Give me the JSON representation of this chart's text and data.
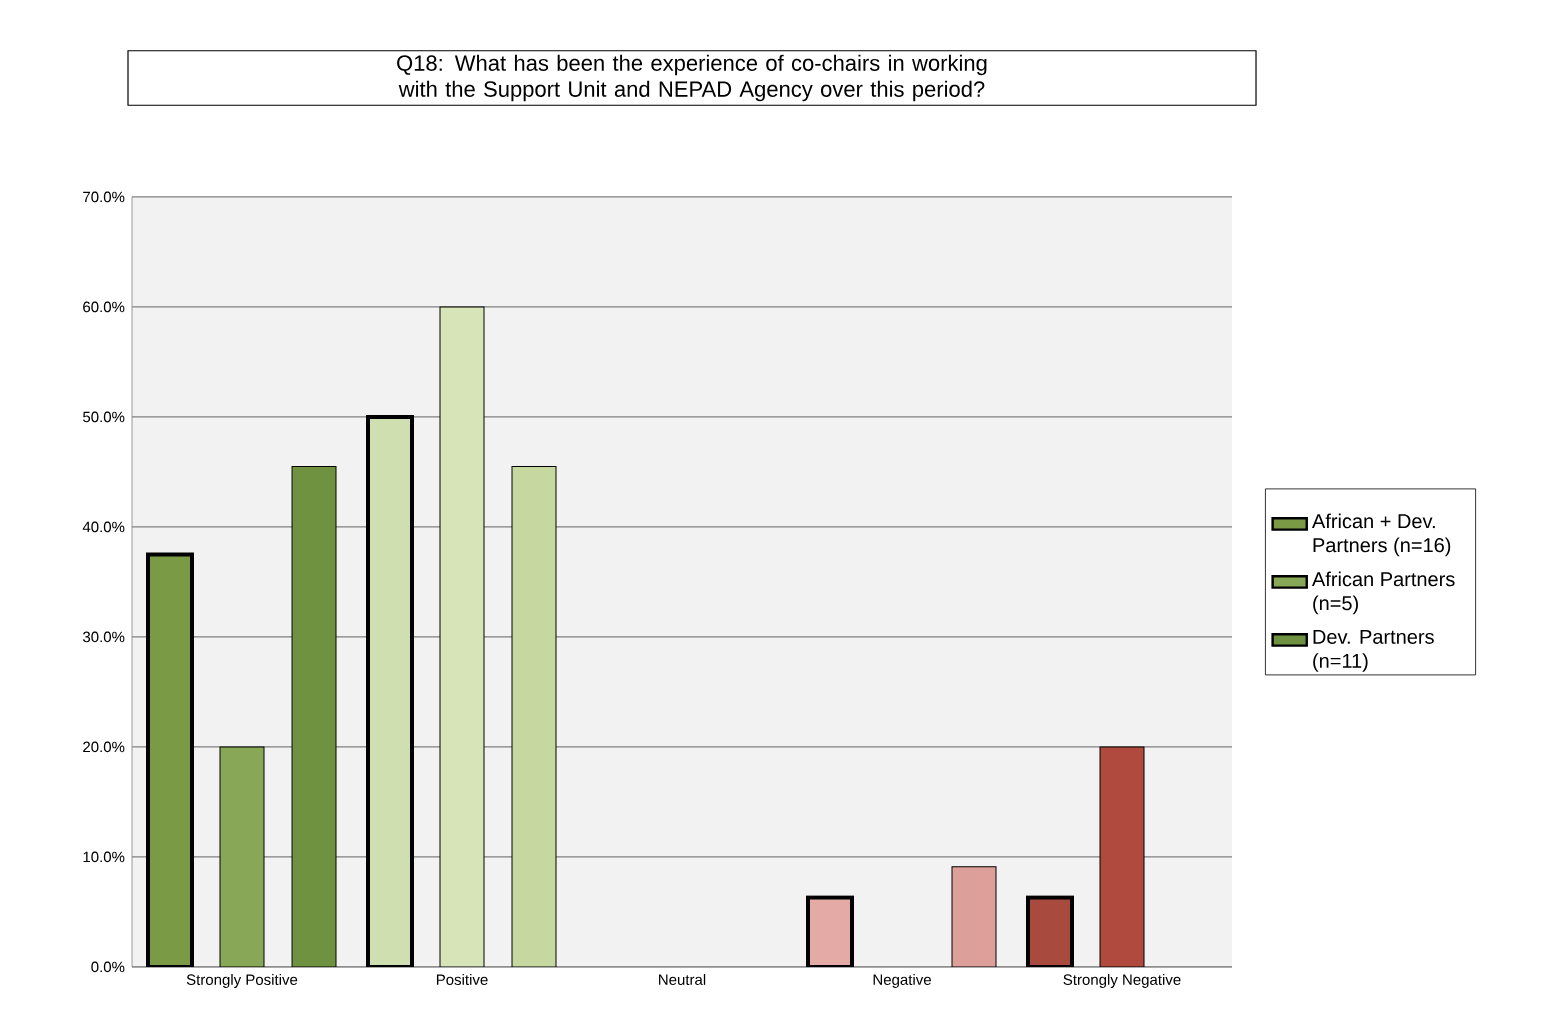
{
  "chart_data": {
    "type": "bar",
    "title": "Q18: What has been the experience of co-chairs in working with the Support Unit and NEPAD Agency over this period?",
    "categories": [
      "Strongly Positive",
      "Positive",
      "Neutral",
      "Negative",
      "Strongly Negative"
    ],
    "series": [
      {
        "name": "African + Dev. Partners (n=16)",
        "color": "#7a9a45",
        "colors": [
          "#7a9a45",
          "#d0dfb0",
          "#d0dfb0",
          "#e3aaa6",
          "#a84a3e"
        ],
        "values": [
          37.5,
          50,
          0,
          6.3,
          6.3
        ]
      },
      {
        "name": "African Partners (n=5)",
        "color": "#89a857",
        "colors": [
          "#89a857",
          "#d6e4b8",
          "#d6e4b8",
          "#dc9f9a",
          "#b04a3e"
        ],
        "values": [
          20,
          60,
          0,
          0,
          20
        ]
      },
      {
        "name": "Dev. Partners (n=11)",
        "color": "#6f9240",
        "colors": [
          "#6f9240",
          "#c6d8a0",
          "#c6d8a0",
          "#dc9f9a",
          "#a84a3e"
        ],
        "values": [
          45.5,
          45.5,
          0,
          9.1,
          0
        ]
      }
    ],
    "ylim": [
      0,
      70
    ],
    "yticks": [
      {
        "value": 0,
        "label": "0.0%"
      },
      {
        "value": 10,
        "label": "10.0%"
      },
      {
        "value": 20,
        "label": "20.0%"
      },
      {
        "value": 30,
        "label": "30.0%"
      },
      {
        "value": 40,
        "label": "40.0%"
      },
      {
        "value": 50,
        "label": "50.0%"
      },
      {
        "value": 60,
        "label": "60.0%"
      },
      {
        "value": 70,
        "label": "70.0%"
      }
    ],
    "grid": "y",
    "legend": "right"
  }
}
